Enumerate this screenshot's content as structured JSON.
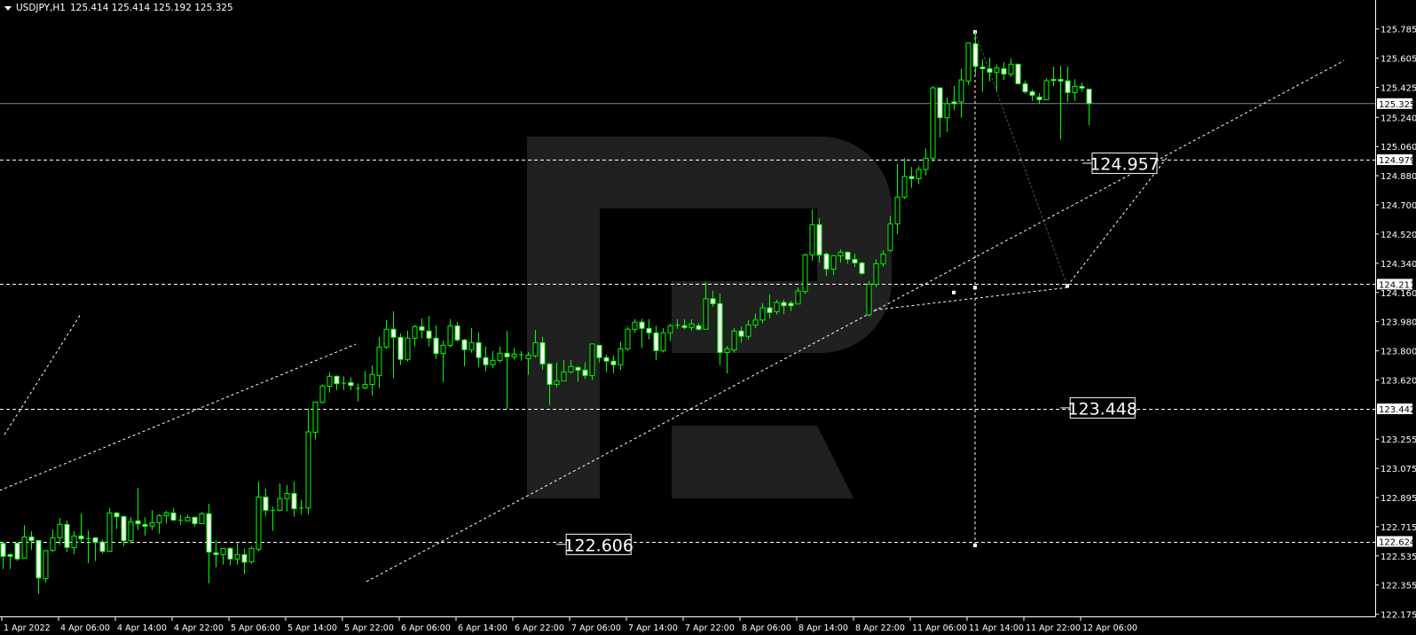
{
  "header": {
    "symbol": "USDJPY,H1",
    "ohlc": "125.414 125.414 125.192 125.325"
  },
  "colors": {
    "background": "#000000",
    "candle_outline": "#00ff00",
    "bull_body": "#000000",
    "bear_body": "#ffffff",
    "axis": "#ffffff",
    "bid_line": "#778899",
    "watermark": "#202020",
    "forecast_path": "#3e5a5a"
  },
  "chart_data": {
    "type": "candlestick",
    "symbol": "USDJPY",
    "timeframe": "H1",
    "ylim": [
      122.175,
      125.785
    ],
    "y_ticks": [
      "125.785",
      "125.605",
      "125.425",
      "125.240",
      "125.060",
      "124.880",
      "124.700",
      "124.520",
      "124.340",
      "124.160",
      "123.980",
      "123.800",
      "123.620",
      "123.255",
      "123.075",
      "122.895",
      "122.715",
      "122.535",
      "122.355",
      "122.175"
    ],
    "x_ticks": [
      "1 Apr 2022",
      "4 Apr 06:00",
      "4 Apr 14:00",
      "4 Apr 22:00",
      "5 Apr 06:00",
      "5 Apr 14:00",
      "5 Apr 22:00",
      "6 Apr 06:00",
      "6 Apr 14:00",
      "6 Apr 22:00",
      "7 Apr 06:00",
      "7 Apr 14:00",
      "7 Apr 22:00",
      "8 Apr 06:00",
      "8 Apr 14:00",
      "8 Apr 22:00",
      "11 Apr 06:00",
      "11 Apr 14:00",
      "11 Apr 22:00",
      "12 Apr 06:00"
    ],
    "x_tick_every_bars": 8,
    "bid": "125.325",
    "levels": [
      "124.979",
      "124.211",
      "123.442",
      "122.624"
    ],
    "price_labels": [
      {
        "text": "124.957",
        "bar": 153.5,
        "price": 124.957
      },
      {
        "text": "123.448",
        "bar": 150.4,
        "price": 123.448
      },
      {
        "text": "122.606",
        "bar": 79.4,
        "price": 122.606
      }
    ],
    "trendlines": [
      {
        "from": [
          -0.4,
          122.939
        ],
        "to": [
          49.75,
          123.841
        ],
        "style": "dashed"
      },
      {
        "from": [
          0.25,
          123.283
        ],
        "to": [
          10.9,
          124.02
        ],
        "style": "dashed"
      },
      {
        "from": [
          51.25,
          122.376
        ],
        "to": [
          189,
          125.59
        ],
        "style": "dashed"
      },
      {
        "from": [
          122.1,
          124.048
        ],
        "to": [
          150,
          124.19
        ],
        "style": "dashed"
      },
      {
        "from": [
          137,
          125.767
        ],
        "to": [
          150,
          124.2
        ],
        "style": "dotted-dark"
      },
      {
        "from": [
          150,
          124.2
        ],
        "to": [
          164,
          124.99
        ],
        "style": "dashed"
      },
      {
        "from": [
          137,
          125.767
        ],
        "to": [
          137,
          122.6
        ],
        "style": "dashed"
      }
    ],
    "candles": [
      [
        122.612,
        122.62,
        122.454,
        122.532
      ],
      [
        122.543,
        122.55,
        122.454,
        122.532
      ],
      [
        122.614,
        122.614,
        122.503,
        122.516
      ],
      [
        122.521,
        122.725,
        122.52,
        122.652
      ],
      [
        122.652,
        122.687,
        122.572,
        122.629
      ],
      [
        122.63,
        122.63,
        122.299,
        122.399
      ],
      [
        122.394,
        122.572,
        122.372,
        122.567
      ],
      [
        122.569,
        122.698,
        122.558,
        122.647
      ],
      [
        122.647,
        122.769,
        122.603,
        122.729
      ],
      [
        122.729,
        122.753,
        122.558,
        122.587
      ],
      [
        122.585,
        122.687,
        122.545,
        122.658
      ],
      [
        122.658,
        122.796,
        122.618,
        122.64
      ],
      [
        122.641,
        122.692,
        122.49,
        122.641
      ],
      [
        122.647,
        122.647,
        122.503,
        122.618
      ],
      [
        122.621,
        122.636,
        122.55,
        122.563
      ],
      [
        122.563,
        122.831,
        122.563,
        122.8
      ],
      [
        122.8,
        122.805,
        122.7,
        122.776
      ],
      [
        122.778,
        122.784,
        122.594,
        122.629
      ],
      [
        122.629,
        122.774,
        122.612,
        122.745
      ],
      [
        122.751,
        122.955,
        122.694,
        122.733
      ],
      [
        122.729,
        122.774,
        122.66,
        122.718
      ],
      [
        122.718,
        122.818,
        122.694,
        122.74
      ],
      [
        122.74,
        122.791,
        122.672,
        122.783
      ],
      [
        122.783,
        122.813,
        122.733,
        122.8
      ],
      [
        122.8,
        122.829,
        122.749,
        122.756
      ],
      [
        122.755,
        122.786,
        122.727,
        122.755
      ],
      [
        122.751,
        122.791,
        122.751,
        122.773
      ],
      [
        122.773,
        122.776,
        122.716,
        122.734
      ],
      [
        122.734,
        122.807,
        122.734,
        122.795
      ],
      [
        122.795,
        122.857,
        122.366,
        122.559
      ],
      [
        122.554,
        122.632,
        122.465,
        122.543
      ],
      [
        122.543,
        122.581,
        122.481,
        122.581
      ],
      [
        122.581,
        122.59,
        122.476,
        122.516
      ],
      [
        122.516,
        122.618,
        122.481,
        122.543
      ],
      [
        122.543,
        122.579,
        122.423,
        122.496
      ],
      [
        122.499,
        122.594,
        122.486,
        122.581
      ],
      [
        122.576,
        122.993,
        122.563,
        122.898
      ],
      [
        122.898,
        122.95,
        122.782,
        122.816
      ],
      [
        122.816,
        122.838,
        122.689,
        122.816
      ],
      [
        122.816,
        122.982,
        122.81,
        122.888
      ],
      [
        122.888,
        122.972,
        122.81,
        122.92
      ],
      [
        122.92,
        122.993,
        122.776,
        122.826
      ],
      [
        122.826,
        122.882,
        122.79,
        122.83
      ],
      [
        122.831,
        123.444,
        122.79,
        123.3
      ],
      [
        123.298,
        123.484,
        123.252,
        123.484
      ],
      [
        123.482,
        123.593,
        123.475,
        123.583
      ],
      [
        123.581,
        123.666,
        123.542,
        123.643
      ],
      [
        123.643,
        123.648,
        123.557,
        123.597
      ],
      [
        123.6,
        123.643,
        123.557,
        123.6
      ],
      [
        123.604,
        123.637,
        123.557,
        123.586
      ],
      [
        123.568,
        123.599,
        123.488,
        123.568
      ],
      [
        123.57,
        123.677,
        123.564,
        123.593
      ],
      [
        123.592,
        123.71,
        123.524,
        123.654
      ],
      [
        123.648,
        123.885,
        123.57,
        123.823
      ],
      [
        123.823,
        123.989,
        123.812,
        123.933
      ],
      [
        123.933,
        124.044,
        123.63,
        123.883
      ],
      [
        123.883,
        123.907,
        123.712,
        123.747
      ],
      [
        123.747,
        123.925,
        123.734,
        123.878
      ],
      [
        123.878,
        123.962,
        123.827,
        123.949
      ],
      [
        123.949,
        124.0,
        123.876,
        123.927
      ],
      [
        123.922,
        124.016,
        123.827,
        123.878
      ],
      [
        123.878,
        123.956,
        123.75,
        123.783
      ],
      [
        123.783,
        123.863,
        123.608,
        123.834
      ],
      [
        123.834,
        123.995,
        123.821,
        123.954
      ],
      [
        123.954,
        123.978,
        123.854,
        123.867
      ],
      [
        123.867,
        123.874,
        123.706,
        123.807
      ],
      [
        123.807,
        123.94,
        123.788,
        123.85
      ],
      [
        123.85,
        123.913,
        123.699,
        123.758
      ],
      [
        123.758,
        123.825,
        123.674,
        123.714
      ],
      [
        123.714,
        123.798,
        123.695,
        123.741
      ],
      [
        123.741,
        123.825,
        123.728,
        123.785
      ],
      [
        123.785,
        123.923,
        123.44,
        123.763
      ],
      [
        123.763,
        123.818,
        123.745,
        123.779
      ],
      [
        123.776,
        123.798,
        123.739,
        123.776
      ],
      [
        123.752,
        123.794,
        123.652,
        123.774
      ],
      [
        123.77,
        123.929,
        123.758,
        123.85
      ],
      [
        123.85,
        123.885,
        123.684,
        123.719
      ],
      [
        123.719,
        123.725,
        123.466,
        123.593
      ],
      [
        123.593,
        123.727,
        123.575,
        123.615
      ],
      [
        123.615,
        123.743,
        123.615,
        123.67
      ],
      [
        123.67,
        123.743,
        123.661,
        123.703
      ],
      [
        123.697,
        123.706,
        123.608,
        123.681
      ],
      [
        123.681,
        123.73,
        123.626,
        123.648
      ],
      [
        123.648,
        123.842,
        123.62,
        123.842
      ],
      [
        123.834,
        123.834,
        123.728,
        123.758
      ],
      [
        123.758,
        123.776,
        123.67,
        123.736
      ],
      [
        123.736,
        123.77,
        123.66,
        123.714
      ],
      [
        123.714,
        123.858,
        123.681,
        123.812
      ],
      [
        123.812,
        123.949,
        123.8,
        123.933
      ],
      [
        123.933,
        123.995,
        123.911,
        123.977
      ],
      [
        123.977,
        123.998,
        123.816,
        123.938
      ],
      [
        123.938,
        123.995,
        123.871,
        123.911
      ],
      [
        123.911,
        123.955,
        123.743,
        123.801
      ],
      [
        123.801,
        123.94,
        123.79,
        123.911
      ],
      [
        123.911,
        123.966,
        123.86,
        123.955
      ],
      [
        123.958,
        123.995,
        123.936,
        123.958
      ],
      [
        123.955,
        123.995,
        123.933,
        123.944
      ],
      [
        123.944,
        123.995,
        123.925,
        123.966
      ],
      [
        123.955,
        123.971,
        123.925,
        123.933
      ],
      [
        123.933,
        124.225,
        123.933,
        124.121
      ],
      [
        124.121,
        124.17,
        124.072,
        124.09
      ],
      [
        124.091,
        124.153,
        123.712,
        123.79
      ],
      [
        123.79,
        123.83,
        123.66,
        123.812
      ],
      [
        123.805,
        123.94,
        123.79,
        123.922
      ],
      [
        123.922,
        123.95,
        123.85,
        123.89
      ],
      [
        123.89,
        123.99,
        123.87,
        123.96
      ],
      [
        123.96,
        124.03,
        123.94,
        123.99
      ],
      [
        123.99,
        124.093,
        123.97,
        124.065
      ],
      [
        124.065,
        124.147,
        124.0,
        124.036
      ],
      [
        124.042,
        124.115,
        124.023,
        124.098
      ],
      [
        124.098,
        124.115,
        124.027,
        124.078
      ],
      [
        124.093,
        124.109,
        124.045,
        124.078
      ],
      [
        124.089,
        124.191,
        124.089,
        124.169
      ],
      [
        124.166,
        124.399,
        124.149,
        124.392
      ],
      [
        124.392,
        124.672,
        124.355,
        124.578
      ],
      [
        124.578,
        124.618,
        124.344,
        124.392
      ],
      [
        124.397,
        124.408,
        124.259,
        124.304
      ],
      [
        124.304,
        124.39,
        124.268,
        124.386
      ],
      [
        124.386,
        124.425,
        124.344,
        124.408
      ],
      [
        124.408,
        124.414,
        124.335,
        124.364
      ],
      [
        124.364,
        124.399,
        124.317,
        124.342
      ],
      [
        124.342,
        124.348,
        124.271,
        124.277
      ],
      [
        124.022,
        124.231,
        124.012,
        124.211
      ],
      [
        124.211,
        124.364,
        124.19,
        124.337
      ],
      [
        124.337,
        124.42,
        124.32,
        124.397
      ],
      [
        124.42,
        124.633,
        124.41,
        124.583
      ],
      [
        124.583,
        124.952,
        124.52,
        124.748
      ],
      [
        124.748,
        124.988,
        124.737,
        124.875
      ],
      [
        124.875,
        124.934,
        124.806,
        124.862
      ],
      [
        124.862,
        124.939,
        124.828,
        124.919
      ],
      [
        124.919,
        125.048,
        124.882,
        124.988
      ],
      [
        124.988,
        125.433,
        124.966,
        125.422
      ],
      [
        125.422,
        125.422,
        125.116,
        125.238
      ],
      [
        125.238,
        125.362,
        125.149,
        125.324
      ],
      [
        125.335,
        125.433,
        125.285,
        125.324
      ],
      [
        125.335,
        125.539,
        125.238,
        125.471
      ],
      [
        125.464,
        125.699,
        125.44,
        125.699
      ],
      [
        125.694,
        125.769,
        125.502,
        125.554
      ],
      [
        125.551,
        125.599,
        125.398,
        125.54
      ],
      [
        125.54,
        125.608,
        125.462,
        125.518
      ],
      [
        125.517,
        125.566,
        125.402,
        125.546
      ],
      [
        125.54,
        125.58,
        125.471,
        125.507
      ],
      [
        125.507,
        125.604,
        125.489,
        125.568
      ],
      [
        125.568,
        125.571,
        125.444,
        125.447
      ],
      [
        125.447,
        125.466,
        125.387,
        125.398
      ],
      [
        125.398,
        125.411,
        125.34,
        125.376
      ],
      [
        125.365,
        125.389,
        125.325,
        125.349
      ],
      [
        125.349,
        125.48,
        125.349,
        125.466
      ],
      [
        125.474,
        125.553,
        125.434,
        125.467
      ],
      [
        125.474,
        125.559,
        125.103,
        125.464
      ],
      [
        125.465,
        125.553,
        125.334,
        125.393
      ],
      [
        125.393,
        125.475,
        125.34,
        125.431
      ],
      [
        125.431,
        125.453,
        125.398,
        125.42
      ],
      [
        125.414,
        125.414,
        125.192,
        125.325
      ]
    ]
  }
}
